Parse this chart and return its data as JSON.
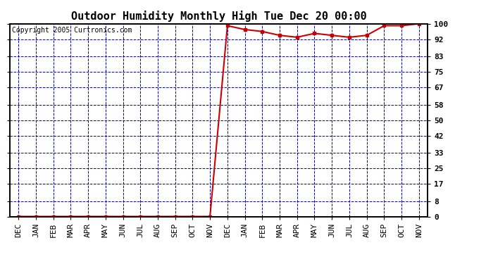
{
  "title": "Outdoor Humidity Monthly High Tue Dec 20 00:00",
  "copyright": "Copyright 2005 Curtronics.com",
  "categories": [
    "DEC",
    "JAN",
    "FEB",
    "MAR",
    "APR",
    "MAY",
    "JUN",
    "JUL",
    "AUG",
    "SEP",
    "OCT",
    "NOV",
    "DEC",
    "JAN",
    "FEB",
    "MAR",
    "APR",
    "MAY",
    "JUN",
    "JUL",
    "AUG",
    "SEP",
    "OCT",
    "NOV"
  ],
  "y_values": [
    0,
    0,
    0,
    0,
    0,
    0,
    0,
    0,
    0,
    0,
    0,
    0,
    99,
    97,
    96,
    94,
    93,
    95,
    94,
    93,
    94,
    99,
    99,
    100
  ],
  "ylim": [
    0,
    100
  ],
  "yticks": [
    0,
    8,
    17,
    25,
    33,
    42,
    50,
    58,
    67,
    75,
    83,
    92,
    100
  ],
  "line_color": "#cc0000",
  "marker_color": "#cc0000",
  "grid_color": "#0000cc",
  "bg_color": "#ffffff",
  "border_color": "#000000",
  "title_fontsize": 11,
  "copyright_fontsize": 7,
  "tick_fontsize": 8
}
